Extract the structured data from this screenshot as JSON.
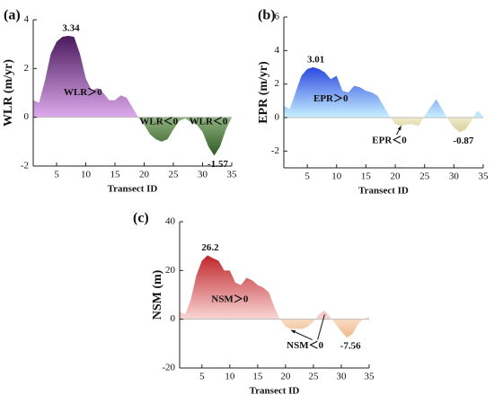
{
  "chart_data": [
    {
      "type": "area",
      "title": "(a)",
      "ylabel": "WLR (m/yr)",
      "xlabel": "Transect ID",
      "x": [
        1,
        2,
        3,
        4,
        5,
        6,
        7,
        8,
        9,
        10,
        11,
        12,
        13,
        14,
        15,
        16,
        17,
        18,
        19,
        20,
        21,
        22,
        23,
        24,
        25,
        26,
        27,
        28,
        29,
        30,
        31,
        32,
        33,
        34,
        35
      ],
      "values": [
        0.7,
        0.6,
        1.5,
        2.6,
        3.1,
        3.3,
        3.34,
        3.3,
        2.6,
        1.6,
        1.1,
        1.2,
        1.0,
        0.7,
        0.7,
        0.9,
        0.8,
        0.4,
        0.0,
        -0.3,
        -0.7,
        -0.9,
        -1.0,
        -0.9,
        -0.5,
        -0.15,
        -0.05,
        -0.2,
        -0.3,
        -0.6,
        -1.2,
        -1.57,
        -1.2,
        -0.5,
        0.0
      ],
      "xlim": [
        1,
        35
      ],
      "xticks": [
        5,
        10,
        15,
        20,
        25,
        30,
        35
      ],
      "ylim": [
        -2,
        4
      ],
      "yticks": [
        -2,
        0,
        2,
        4
      ],
      "positive_colors": [
        "#4a1a5c",
        "#dcaaec"
      ],
      "negative_colors": [
        "#2f5a22",
        "#8fb27f"
      ],
      "annotations": [
        "WLR＞0",
        "WLR＜0",
        "WLR＜0"
      ]
    },
    {
      "type": "area",
      "title": "(b)",
      "ylabel": "EPR (m/yr)",
      "xlabel": "Transect ID",
      "x": [
        1,
        2,
        3,
        4,
        5,
        6,
        7,
        8,
        9,
        10,
        11,
        12,
        13,
        14,
        15,
        16,
        17,
        18,
        19,
        20,
        21,
        22,
        23,
        24,
        25,
        26,
        27,
        28,
        29,
        30,
        31,
        32,
        33,
        34,
        35
      ],
      "values": [
        0.7,
        0.5,
        1.5,
        2.5,
        2.9,
        3.01,
        2.9,
        2.7,
        2.3,
        2.5,
        1.6,
        1.5,
        1.9,
        1.8,
        1.6,
        1.5,
        1.3,
        0.7,
        0.1,
        -0.4,
        -0.5,
        -0.4,
        -0.4,
        -0.5,
        0.1,
        0.6,
        1.1,
        0.5,
        -0.1,
        -0.6,
        -0.87,
        -0.7,
        -0.2,
        0.4,
        0.1
      ],
      "xlim": [
        1,
        35
      ],
      "xticks": [
        5,
        10,
        15,
        20,
        25,
        30,
        35
      ],
      "ylim": [
        -3,
        6
      ],
      "yticks": [
        -2,
        0,
        2,
        4,
        6
      ],
      "positive_colors": [
        "#2a48e0",
        "#c8f2ff"
      ],
      "negative_colors": [
        "#d8cf98",
        "#f0ebcc"
      ],
      "annotations": [
        "EPR＞0",
        "EPR＜0"
      ]
    },
    {
      "type": "area",
      "title": "(c)",
      "ylabel": "NSM (m)",
      "xlabel": "Transect ID",
      "x": [
        1,
        2,
        3,
        4,
        5,
        6,
        7,
        8,
        9,
        10,
        11,
        12,
        13,
        14,
        15,
        16,
        17,
        18,
        19,
        20,
        21,
        22,
        23,
        24,
        25,
        26,
        27,
        28,
        29,
        30,
        31,
        32,
        33,
        34,
        35
      ],
      "values": [
        3,
        2,
        8,
        18,
        24,
        26.2,
        25,
        24,
        20,
        20,
        15,
        14,
        17,
        16,
        14,
        13,
        11,
        5,
        0,
        -3,
        -4,
        -4,
        -4,
        -3,
        -1,
        2,
        3.5,
        1,
        -2,
        -5,
        -7.56,
        -6,
        -2,
        0,
        1
      ],
      "xlim": [
        1,
        35
      ],
      "xticks": [
        5,
        10,
        15,
        20,
        25,
        30,
        35
      ],
      "ylim": [
        -20,
        40
      ],
      "yticks": [
        -20,
        0,
        20,
        40
      ],
      "positive_colors": [
        "#c0262a",
        "#f9d6d6"
      ],
      "negative_colors": [
        "#eeb88a",
        "#f8dcc4"
      ],
      "annotations": [
        "NSM＞0",
        "NSM＜0"
      ]
    }
  ]
}
